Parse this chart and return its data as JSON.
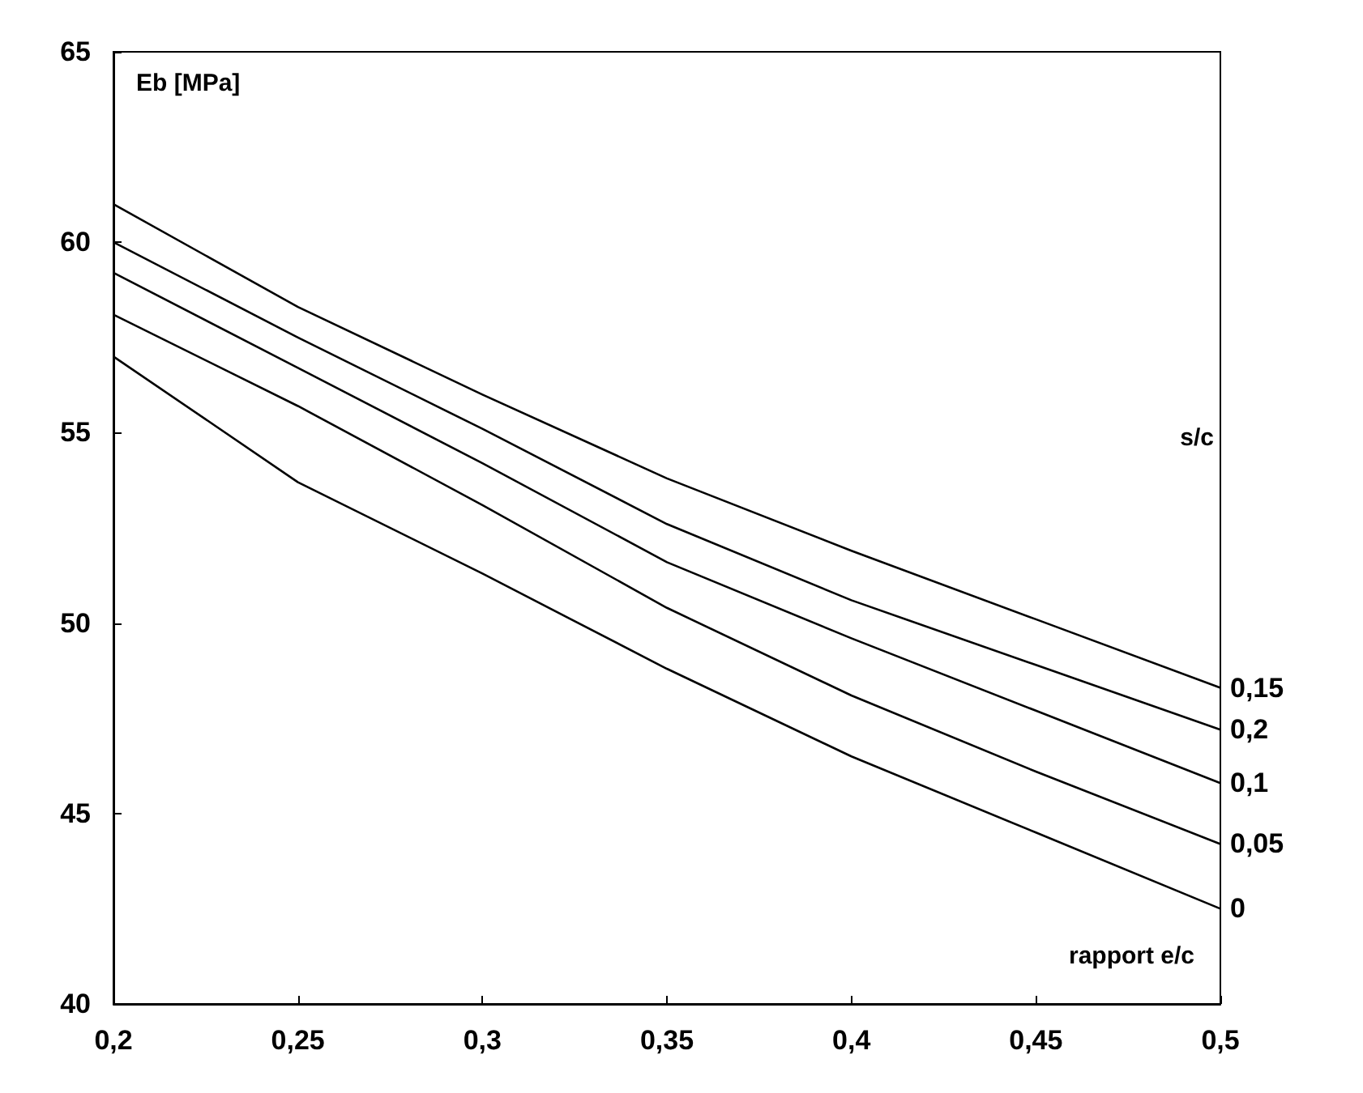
{
  "chart_data": {
    "type": "line",
    "xlabel": "rapport e/c",
    "ylabel": "Eb [MPa]",
    "legend_title": "s/c",
    "x": [
      0.2,
      0.25,
      0.3,
      0.35,
      0.4,
      0.45,
      0.5
    ],
    "series": [
      {
        "name": "0,15",
        "color": "#000000",
        "values": [
          61.0,
          58.3,
          56.0,
          53.8,
          51.9,
          50.1,
          48.3
        ]
      },
      {
        "name": "0,2",
        "color": "#000000",
        "values": [
          60.0,
          57.5,
          55.1,
          52.6,
          50.6,
          48.9,
          47.2
        ]
      },
      {
        "name": "0,1",
        "color": "#000000",
        "values": [
          59.2,
          56.7,
          54.2,
          51.6,
          49.6,
          47.7,
          45.8
        ]
      },
      {
        "name": "0,05",
        "color": "#000000",
        "values": [
          58.1,
          55.7,
          53.1,
          50.4,
          48.1,
          46.1,
          44.2
        ]
      },
      {
        "name": "0",
        "color": "#000000",
        "values": [
          57.0,
          53.7,
          51.3,
          48.8,
          46.5,
          44.5,
          42.5
        ]
      }
    ],
    "xlim": [
      0.2,
      0.5
    ],
    "xticks": [
      {
        "value": 0.2,
        "label": "0,2"
      },
      {
        "value": 0.25,
        "label": "0,25"
      },
      {
        "value": 0.3,
        "label": "0,3"
      },
      {
        "value": 0.35,
        "label": "0,35"
      },
      {
        "value": 0.4,
        "label": "0,4"
      },
      {
        "value": 0.45,
        "label": "0,45"
      },
      {
        "value": 0.5,
        "label": "0,5"
      }
    ],
    "ylim": [
      40,
      65
    ],
    "yticks": [
      40,
      45,
      50,
      55,
      60,
      65
    ],
    "grid": false,
    "legend": false,
    "marker": "none",
    "line_style": "solid"
  }
}
